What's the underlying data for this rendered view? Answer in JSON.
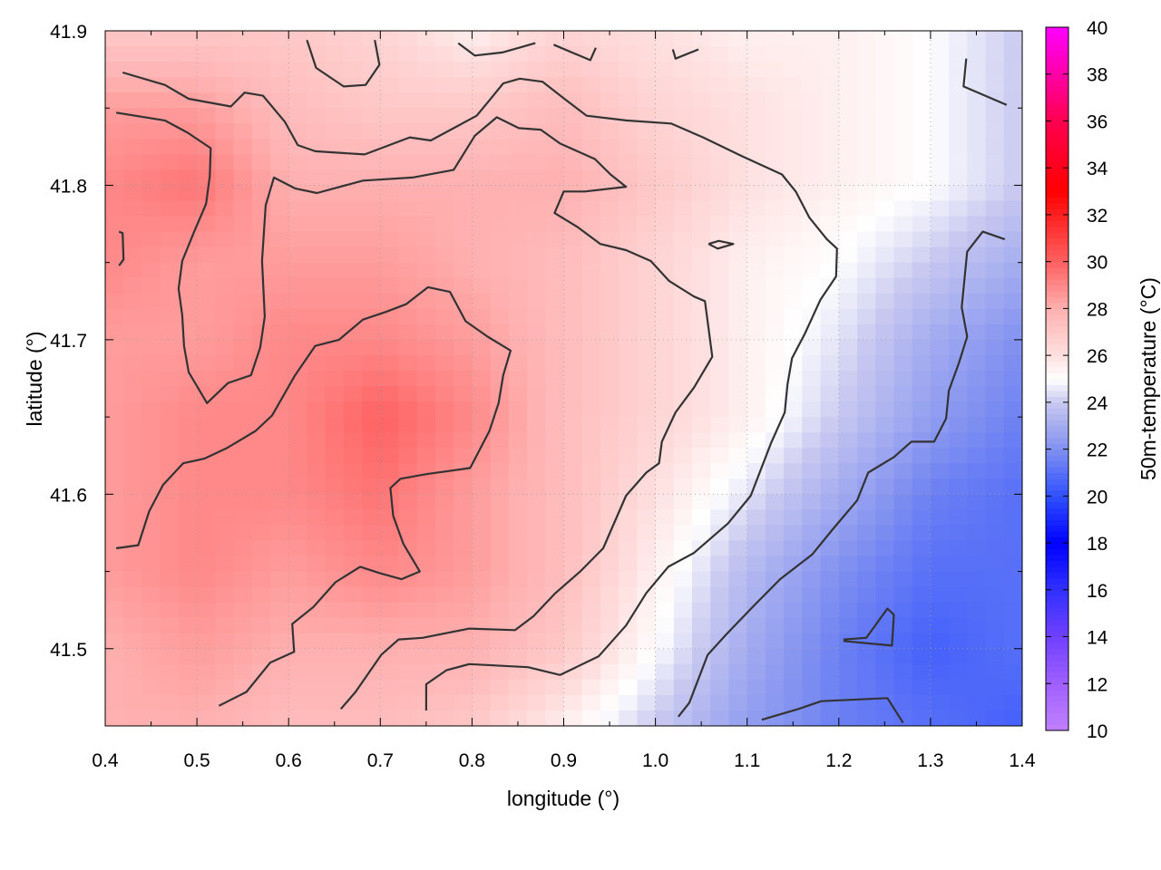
{
  "chart_data": {
    "type": "heatmap",
    "xlabel": "longitude (°)",
    "ylabel": "latitude (°)",
    "colorbar_label": "50m-temperature (°C)",
    "xlim": [
      0.4,
      1.4
    ],
    "ylim": [
      41.45,
      41.9
    ],
    "xticks": [
      "0.4",
      "0.5",
      "0.6",
      "0.7",
      "0.8",
      "0.9",
      "1.0",
      "1.1",
      "1.2",
      "1.3",
      "1.4"
    ],
    "yticks": [
      "41.5",
      "41.6",
      "41.7",
      "41.8",
      "41.9"
    ],
    "colorbar_range": [
      10,
      40
    ],
    "colorbar_ticks": [
      "10",
      "12",
      "14",
      "16",
      "18",
      "20",
      "22",
      "24",
      "26",
      "28",
      "30",
      "32",
      "34",
      "36",
      "38",
      "40"
    ],
    "grid": true,
    "colormap": [
      [
        10,
        "#c080ff"
      ],
      [
        12,
        "#a060ff"
      ],
      [
        14,
        "#7040ff"
      ],
      [
        16,
        "#3030ff"
      ],
      [
        18,
        "#0000ff"
      ],
      [
        20,
        "#3050ff"
      ],
      [
        22,
        "#8090f0"
      ],
      [
        24,
        "#c8c8f0"
      ],
      [
        25,
        "#ffffff"
      ],
      [
        26,
        "#ffe0e0"
      ],
      [
        28,
        "#ffb0b0"
      ],
      [
        29,
        "#ff8888"
      ],
      [
        30,
        "#ff6060"
      ],
      [
        32,
        "#ff2020"
      ],
      [
        33,
        "#ff0000"
      ],
      [
        36,
        "#ff0050"
      ],
      [
        40,
        "#ff00ff"
      ]
    ],
    "grid_lon": [
      0.4,
      0.5,
      0.6,
      0.7,
      0.8,
      0.9,
      1.0,
      1.1,
      1.2,
      1.3,
      1.4
    ],
    "grid_lat": [
      41.9,
      41.85,
      41.8,
      41.75,
      41.7,
      41.65,
      41.6,
      41.55,
      41.5,
      41.45
    ],
    "temperature": [
      [
        27,
        27,
        27,
        26.5,
        25.5,
        26.5,
        26,
        25.5,
        25.5,
        25,
        24
      ],
      [
        28.5,
        28.5,
        27.5,
        27,
        27,
        27.5,
        26.5,
        26,
        25.5,
        25,
        24
      ],
      [
        29,
        29.5,
        28,
        28,
        28,
        28,
        27,
        26,
        25.5,
        25,
        24
      ],
      [
        29,
        28.5,
        28.5,
        28.5,
        28,
        27.5,
        26.5,
        25.5,
        25,
        24,
        23
      ],
      [
        28.5,
        28.5,
        29,
        29,
        28.5,
        27.5,
        26.5,
        25.5,
        24.5,
        23,
        22
      ],
      [
        28.5,
        29,
        29,
        30,
        29,
        27.5,
        26.5,
        25.5,
        24,
        22.5,
        21.5
      ],
      [
        28.5,
        29,
        29,
        29.5,
        28.5,
        27.5,
        26,
        24.5,
        23,
        21.5,
        21
      ],
      [
        28.5,
        29,
        28.5,
        29,
        28.5,
        27.5,
        25.5,
        23.5,
        22,
        21,
        21
      ],
      [
        28,
        28.5,
        28,
        28,
        28,
        27,
        25,
        23,
        21.5,
        20.5,
        21
      ],
      [
        28,
        28,
        27.5,
        27.5,
        27,
        25.5,
        24,
        22.5,
        21.5,
        21,
        20.5
      ]
    ],
    "contours": [
      [
        [
          0.419,
          41.873
        ],
        [
          0.465,
          41.865
        ],
        [
          0.491,
          41.856
        ],
        [
          0.537,
          41.851
        ],
        [
          0.552,
          41.86
        ],
        [
          0.572,
          41.858
        ],
        [
          0.596,
          41.841
        ],
        [
          0.61,
          41.826
        ],
        [
          0.629,
          41.822
        ],
        [
          0.683,
          41.82
        ],
        [
          0.732,
          41.831
        ],
        [
          0.755,
          41.829
        ],
        [
          0.78,
          41.837
        ],
        [
          0.805,
          41.845
        ],
        [
          0.819,
          41.855
        ],
        [
          0.834,
          41.866
        ],
        [
          0.852,
          41.869
        ],
        [
          0.877,
          41.867
        ],
        [
          0.903,
          41.855
        ],
        [
          0.925,
          41.845
        ],
        [
          0.968,
          41.842
        ],
        [
          1.017,
          41.84
        ],
        [
          1.052,
          41.831
        ],
        [
          1.094,
          41.819
        ],
        [
          1.138,
          41.807
        ],
        [
          1.153,
          41.796
        ],
        [
          1.168,
          41.779
        ],
        [
          1.187,
          41.765
        ],
        [
          1.198,
          41.759
        ],
        [
          1.197,
          41.741
        ],
        [
          1.18,
          41.726
        ],
        [
          1.163,
          41.704
        ],
        [
          1.149,
          41.688
        ],
        [
          1.144,
          41.671
        ],
        [
          1.141,
          41.653
        ],
        [
          1.126,
          41.633
        ],
        [
          1.104,
          41.599
        ],
        [
          1.079,
          41.581
        ],
        [
          1.042,
          41.562
        ],
        [
          1.014,
          41.553
        ],
        [
          0.99,
          41.536
        ],
        [
          0.968,
          41.515
        ],
        [
          0.938,
          41.495
        ],
        [
          0.896,
          41.483
        ],
        [
          0.861,
          41.488
        ],
        [
          0.797,
          41.49
        ],
        [
          0.772,
          41.486
        ],
        [
          0.75,
          41.477
        ],
        [
          0.75,
          41.46
        ]
      ],
      [
        [
          0.412,
          41.847
        ],
        [
          0.465,
          41.842
        ],
        [
          0.49,
          41.834
        ],
        [
          0.515,
          41.824
        ],
        [
          0.514,
          41.806
        ],
        [
          0.51,
          41.788
        ],
        [
          0.497,
          41.77
        ],
        [
          0.484,
          41.751
        ],
        [
          0.48,
          41.733
        ],
        [
          0.484,
          41.716
        ],
        [
          0.486,
          41.696
        ],
        [
          0.491,
          41.679
        ],
        [
          0.501,
          41.669
        ],
        [
          0.511,
          41.659
        ],
        [
          0.534,
          41.672
        ],
        [
          0.559,
          41.677
        ],
        [
          0.569,
          41.695
        ],
        [
          0.574,
          41.715
        ],
        [
          0.571,
          41.751
        ],
        [
          0.575,
          41.787
        ],
        [
          0.584,
          41.805
        ],
        [
          0.607,
          41.798
        ],
        [
          0.631,
          41.795
        ],
        [
          0.681,
          41.803
        ],
        [
          0.735,
          41.805
        ],
        [
          0.78,
          41.81
        ],
        [
          0.803,
          41.832
        ],
        [
          0.827,
          41.844
        ],
        [
          0.851,
          41.837
        ],
        [
          0.875,
          41.836
        ],
        [
          0.896,
          41.827
        ],
        [
          0.934,
          41.817
        ],
        [
          0.951,
          41.807
        ],
        [
          0.968,
          41.799
        ],
        [
          0.923,
          41.796
        ],
        [
          0.9,
          41.796
        ],
        [
          0.89,
          41.782
        ],
        [
          0.915,
          41.773
        ],
        [
          0.94,
          41.762
        ],
        [
          0.968,
          41.758
        ],
        [
          0.995,
          41.751
        ],
        [
          1.015,
          41.738
        ],
        [
          1.042,
          41.728
        ],
        [
          1.054,
          41.725
        ],
        [
          1.062,
          41.689
        ],
        [
          1.042,
          41.669
        ],
        [
          1.022,
          41.653
        ],
        [
          1.007,
          41.634
        ],
        [
          1.004,
          41.62
        ],
        [
          0.99,
          41.614
        ],
        [
          0.968,
          41.599
        ],
        [
          0.943,
          41.565
        ],
        [
          0.918,
          41.55
        ],
        [
          0.891,
          41.536
        ],
        [
          0.867,
          41.521
        ],
        [
          0.847,
          41.512
        ],
        [
          0.797,
          41.513
        ],
        [
          0.746,
          41.507
        ],
        [
          0.72,
          41.506
        ],
        [
          0.701,
          41.496
        ],
        [
          0.673,
          41.472
        ],
        [
          0.657,
          41.461
        ]
      ],
      [
        [
          0.412,
          41.565
        ],
        [
          0.436,
          41.567
        ],
        [
          0.448,
          41.589
        ],
        [
          0.463,
          41.606
        ],
        [
          0.485,
          41.62
        ],
        [
          0.508,
          41.623
        ],
        [
          0.533,
          41.63
        ],
        [
          0.564,
          41.641
        ],
        [
          0.582,
          41.651
        ],
        [
          0.607,
          41.677
        ],
        [
          0.629,
          41.696
        ],
        [
          0.655,
          41.7
        ],
        [
          0.681,
          41.713
        ],
        [
          0.706,
          41.718
        ],
        [
          0.728,
          41.723
        ],
        [
          0.752,
          41.734
        ],
        [
          0.776,
          41.731
        ],
        [
          0.793,
          41.712
        ],
        [
          0.817,
          41.702
        ],
        [
          0.842,
          41.693
        ],
        [
          0.834,
          41.677
        ],
        [
          0.829,
          41.659
        ],
        [
          0.819,
          41.641
        ],
        [
          0.798,
          41.617
        ],
        [
          0.75,
          41.613
        ],
        [
          0.722,
          41.61
        ],
        [
          0.711,
          41.604
        ],
        [
          0.714,
          41.586
        ],
        [
          0.725,
          41.568
        ],
        [
          0.743,
          41.55
        ],
        [
          0.723,
          41.545
        ],
        [
          0.699,
          41.549
        ],
        [
          0.678,
          41.553
        ],
        [
          0.651,
          41.543
        ],
        [
          0.627,
          41.527
        ],
        [
          0.604,
          41.516
        ],
        [
          0.606,
          41.498
        ],
        [
          0.58,
          41.491
        ],
        [
          0.554,
          41.472
        ],
        [
          0.524,
          41.463
        ]
      ],
      [
        [
          1.025,
          41.456
        ],
        [
          1.037,
          41.465
        ],
        [
          1.057,
          41.496
        ],
        [
          1.077,
          41.509
        ],
        [
          1.106,
          41.527
        ],
        [
          1.136,
          41.545
        ],
        [
          1.171,
          41.561
        ],
        [
          1.193,
          41.577
        ],
        [
          1.22,
          41.596
        ],
        [
          1.232,
          41.614
        ],
        [
          1.26,
          41.624
        ],
        [
          1.279,
          41.634
        ],
        [
          1.304,
          41.634
        ],
        [
          1.317,
          41.649
        ],
        [
          1.32,
          41.667
        ],
        [
          1.331,
          41.685
        ],
        [
          1.34,
          41.702
        ],
        [
          1.334,
          41.721
        ],
        [
          1.34,
          41.757
        ],
        [
          1.357,
          41.77
        ],
        [
          1.381,
          41.765
        ]
      ],
      [
        [
          1.116,
          41.454
        ],
        [
          1.156,
          41.461
        ],
        [
          1.181,
          41.466
        ],
        [
          1.253,
          41.468
        ],
        [
          1.27,
          41.452
        ]
      ],
      [
        [
          1.205,
          41.506
        ],
        [
          1.23,
          41.507
        ],
        [
          1.253,
          41.526
        ],
        [
          1.26,
          41.522
        ],
        [
          1.258,
          41.502
        ],
        [
          1.205,
          41.505
        ]
      ],
      [
        [
          1.058,
          41.762
        ],
        [
          1.069,
          41.764
        ],
        [
          1.085,
          41.762
        ],
        [
          1.068,
          41.759
        ],
        [
          1.058,
          41.762
        ]
      ],
      [
        [
          0.415,
          41.77
        ],
        [
          0.419,
          41.769
        ],
        [
          0.42,
          41.752
        ],
        [
          0.415,
          41.748
        ]
      ],
      [
        [
          0.62,
          41.894
        ],
        [
          0.63,
          41.876
        ],
        [
          0.66,
          41.864
        ],
        [
          0.684,
          41.865
        ],
        [
          0.699,
          41.878
        ],
        [
          0.694,
          41.894
        ]
      ],
      [
        [
          0.785,
          41.892
        ],
        [
          0.803,
          41.884
        ],
        [
          0.833,
          41.886
        ],
        [
          0.869,
          41.892
        ]
      ],
      [
        [
          0.889,
          41.891
        ],
        [
          0.929,
          41.881
        ],
        [
          0.935,
          41.889
        ]
      ],
      [
        [
          1.019,
          41.888
        ],
        [
          1.022,
          41.882
        ],
        [
          1.047,
          41.888
        ]
      ],
      [
        [
          1.339,
          41.882
        ],
        [
          1.336,
          41.864
        ],
        [
          1.383,
          41.852
        ]
      ]
    ]
  }
}
